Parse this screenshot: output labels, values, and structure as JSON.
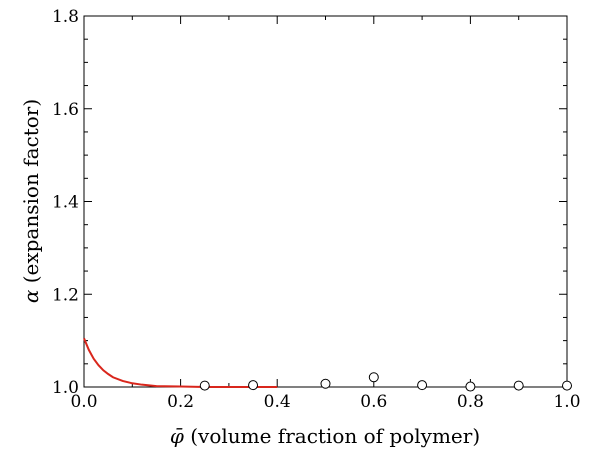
{
  "chart_data": {
    "type": "scatter",
    "title": "",
    "xlabel_symbol": "φ̄",
    "xlabel_text": " (volume fraction of polymer)",
    "ylabel_symbol": "α",
    "ylabel_text": " (expansion factor)",
    "xlim": [
      0.0,
      1.0
    ],
    "ylim": [
      1.0,
      1.8
    ],
    "x_ticks": [
      "0.0",
      "0.2",
      "0.4",
      "0.6",
      "0.8",
      "1.0"
    ],
    "y_ticks": [
      "1.0",
      "1.2",
      "1.4",
      "1.6",
      "1.8"
    ],
    "grid": false,
    "series": [
      {
        "kind": "line",
        "color": "#d9261c",
        "x": [
          0.0,
          0.01,
          0.02,
          0.03,
          0.04,
          0.05,
          0.06,
          0.08,
          0.1,
          0.12,
          0.15,
          0.2,
          0.25,
          0.3,
          0.35,
          0.4
        ],
        "y": [
          1.105,
          1.08,
          1.061,
          1.047,
          1.036,
          1.028,
          1.021,
          1.013,
          1.008,
          1.005,
          1.002,
          1.001,
          1.0,
          1.0,
          1.0,
          1.0
        ]
      },
      {
        "kind": "markers",
        "marker": "open-circle",
        "x": [
          0.25,
          0.35,
          0.5,
          0.6,
          0.7,
          0.8,
          0.9,
          1.0
        ],
        "y": [
          1.003,
          1.004,
          1.007,
          1.021,
          1.004,
          1.001,
          1.003,
          1.003
        ]
      }
    ]
  }
}
